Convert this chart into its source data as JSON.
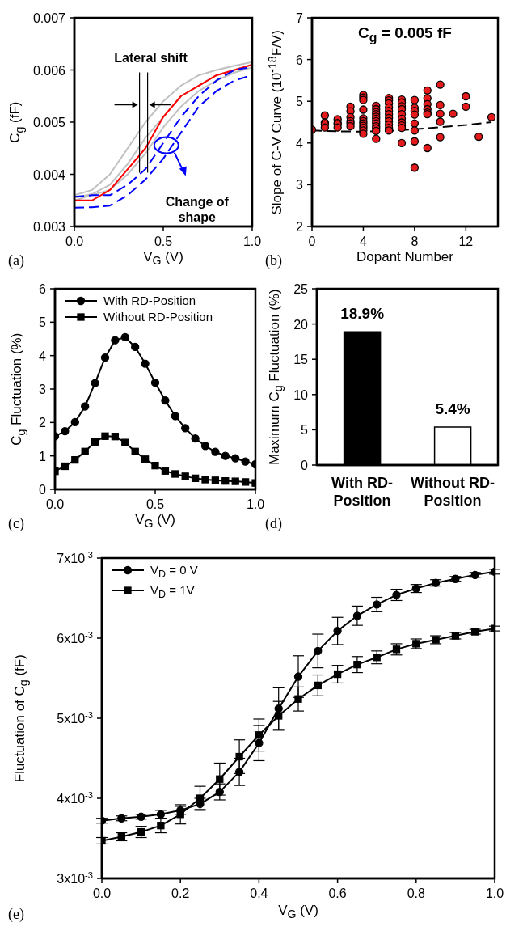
{
  "chart_data": [
    {
      "type": "line",
      "xlabel": "V$_{G}$ (V)",
      "ylabel": "C$_{g}$ (fF)",
      "x": [
        0,
        0.1,
        0.2,
        0.3,
        0.4,
        0.5,
        0.6,
        0.7,
        0.8,
        0.9,
        1.0
      ],
      "series": [
        {
          "color": "#c0c0c0",
          "values": [
            0.0036,
            0.0037,
            0.004,
            0.0045,
            0.005,
            0.0054,
            0.0057,
            0.0059,
            0.006,
            0.00608,
            0.00615
          ]
        },
        {
          "color": "#c0c0c0",
          "values": [
            0.00355,
            0.00362,
            0.0038,
            0.0042,
            0.0047,
            0.0051,
            0.0055,
            0.0057,
            0.0059,
            0.006,
            0.0061
          ]
        },
        {
          "color": "#c0c0c0",
          "values": [
            0.0035,
            0.0036,
            0.0037,
            0.004,
            0.0044,
            0.0049,
            0.0053,
            0.0056,
            0.0058,
            0.00595,
            0.00605
          ]
        },
        {
          "color": "#ff0000",
          "values": [
            0.0035,
            0.0035,
            0.0037,
            0.0041,
            0.0045,
            0.0051,
            0.0055,
            0.0057,
            0.0059,
            0.006,
            0.0061
          ]
        },
        {
          "color": "#0000ff",
          "line_style": "dashed",
          "values": [
            0.00357,
            0.0036,
            0.0036,
            0.0038,
            0.0041,
            0.0046,
            0.0051,
            0.0055,
            0.0058,
            0.006,
            0.00606
          ]
        },
        {
          "color": "#0000ff",
          "line_style": "dashed",
          "values": [
            0.00336,
            0.00337,
            0.0034,
            0.0036,
            0.0039,
            0.0043,
            0.0048,
            0.0053,
            0.0056,
            0.0058,
            0.0059
          ]
        }
      ],
      "xlim": [
        0,
        1
      ],
      "xticks": [
        {
          "value": 0,
          "label": "0.0"
        },
        {
          "value": 0.5,
          "label": "0.5"
        },
        {
          "value": 1,
          "label": "1.0"
        }
      ],
      "ylim": [
        0.003,
        0.007
      ],
      "yticks": [
        0.003,
        0.004,
        0.005,
        0.006,
        0.007
      ],
      "annotations": [
        "(a)",
        "Lateral shift",
        "Change of shape"
      ]
    },
    {
      "type": "scatter",
      "title": "C$_{g}$ =  0.005 fF",
      "xlabel": "Dopant Number",
      "ylabel": "Slope of C-V Curve (10$^{-18}$F/V)",
      "series": [
        {
          "color": "#e41a1c",
          "marker": "circle",
          "x": [
            0,
            1,
            1,
            1,
            1,
            2,
            2,
            2,
            2,
            3,
            3,
            3,
            3,
            3,
            3,
            4,
            4,
            4,
            4,
            4,
            4,
            4,
            4,
            4,
            4,
            4,
            5,
            5,
            5,
            5,
            5,
            5,
            5,
            5,
            5,
            5,
            5,
            5,
            6,
            6,
            6,
            6,
            6,
            6,
            6,
            6,
            6,
            6,
            6,
            7,
            7,
            7,
            7,
            7,
            7,
            7,
            7,
            7,
            7,
            8,
            8,
            8,
            8,
            8,
            8,
            8,
            8,
            9,
            9,
            9,
            9,
            9,
            9,
            9,
            10,
            10,
            10,
            10,
            10,
            11,
            12,
            12,
            13,
            14
          ],
          "values": [
            4.32,
            4.66,
            4.49,
            4.45,
            4.37,
            4.57,
            4.48,
            4.45,
            4.37,
            4.87,
            4.76,
            4.62,
            4.52,
            4.47,
            4.4,
            5.15,
            5.09,
            5.03,
            4.8,
            4.59,
            4.52,
            4.47,
            4.41,
            4.36,
            4.3,
            4.22,
            4.89,
            4.81,
            4.74,
            4.69,
            4.63,
            4.58,
            4.52,
            4.47,
            4.4,
            4.35,
            4.29,
            4.1,
            5.08,
            5.02,
            4.95,
            4.85,
            4.77,
            4.69,
            4.6,
            4.52,
            4.44,
            4.36,
            4.3,
            5.04,
            4.97,
            4.88,
            4.81,
            4.69,
            4.58,
            4.49,
            4.42,
            4.36,
            4.0,
            5.03,
            4.84,
            4.77,
            4.68,
            4.47,
            4.3,
            4.04,
            3.41,
            5.26,
            5.07,
            4.93,
            4.81,
            4.73,
            4.69,
            3.88,
            5.4,
            4.91,
            4.7,
            4.51,
            4.14,
            4.7,
            5.12,
            4.87,
            4.15,
            4.62
          ]
        },
        {
          "type": "line",
          "color": "#000000",
          "line_style": "dashed",
          "x": [
            0,
            2,
            4,
            6,
            8,
            10,
            12,
            14
          ],
          "values": [
            4.3,
            4.28,
            4.27,
            4.29,
            4.33,
            4.38,
            4.43,
            4.5
          ]
        }
      ],
      "xlim": [
        0,
        14.5
      ],
      "xticks": [
        0,
        4,
        8,
        12
      ],
      "ylim": [
        2,
        7
      ],
      "yticks": [
        2,
        3,
        4,
        5,
        6,
        7
      ],
      "annotations": [
        "(b)"
      ]
    },
    {
      "type": "line",
      "xlabel": "V$_{G}$ (V)",
      "ylabel": "C$_{g}$ Fluctuation (%)",
      "legend": "top left",
      "x": [
        0,
        0.05,
        0.1,
        0.15,
        0.2,
        0.25,
        0.3,
        0.35,
        0.4,
        0.45,
        0.5,
        0.55,
        0.6,
        0.65,
        0.7,
        0.75,
        0.8,
        0.85,
        0.9,
        0.95,
        1.0
      ],
      "series": [
        {
          "name": "With RD-Position",
          "color": "#000000",
          "marker": "circle",
          "values": [
            1.59,
            1.74,
            2.01,
            2.48,
            3.18,
            3.94,
            4.46,
            4.55,
            4.26,
            3.76,
            3.19,
            2.66,
            2.19,
            1.83,
            1.52,
            1.3,
            1.12,
            1.0,
            0.93,
            0.83,
            0.75
          ]
        },
        {
          "name": "Without RD-Position",
          "color": "#000000",
          "marker": "square",
          "values": [
            0.54,
            0.69,
            0.88,
            1.13,
            1.42,
            1.59,
            1.58,
            1.4,
            1.13,
            0.9,
            0.71,
            0.55,
            0.46,
            0.39,
            0.33,
            0.29,
            0.27,
            0.25,
            0.24,
            0.22,
            0.19
          ]
        }
      ],
      "xlim": [
        0,
        1
      ],
      "xticks": [
        {
          "value": 0,
          "label": "0.0"
        },
        {
          "value": 0.5,
          "label": "0.5"
        },
        {
          "value": 1,
          "label": "1.0"
        }
      ],
      "ylim": [
        0,
        6
      ],
      "yticks": [
        0,
        1,
        2,
        3,
        4,
        5,
        6
      ],
      "annotations": [
        "(c)"
      ]
    },
    {
      "type": "bar",
      "ylabel": "Maximum C$_{g}$ Fluctuation (%)",
      "categories": [
        "With RD-\nPosition",
        "Without RD-\nPosition"
      ],
      "values": [
        18.9,
        5.4
      ],
      "colors": [
        "#000000",
        "#ffffff"
      ],
      "value_labels": [
        "18.9%",
        "5.4%"
      ],
      "ylim": [
        0,
        25
      ],
      "yticks": [
        0,
        5,
        10,
        15,
        20,
        25
      ],
      "annotations": [
        "(d)"
      ]
    },
    {
      "type": "line",
      "xlabel": "V$_{G}$ (V)",
      "ylabel": "Fluctuation of C$_{g}$ (fF)",
      "legend": "top left",
      "x": [
        0,
        0.05,
        0.1,
        0.15,
        0.2,
        0.25,
        0.3,
        0.35,
        0.4,
        0.45,
        0.5,
        0.55,
        0.6,
        0.65,
        0.7,
        0.75,
        0.8,
        0.85,
        0.9,
        0.95,
        1.0
      ],
      "series": [
        {
          "name": "V$_{D}$ = 0 V",
          "color": "#000000",
          "marker": "circle",
          "values": [
            0.00372,
            0.00375,
            0.00377,
            0.0038,
            0.00385,
            0.00393,
            0.00408,
            0.00433,
            0.00469,
            0.00512,
            0.00552,
            0.00584,
            0.00609,
            0.00628,
            0.00642,
            0.00654,
            0.00662,
            0.00669,
            0.00674,
            0.00679,
            0.00683
          ],
          "errors": [
            3e-05,
            3e-05,
            3e-05,
            5e-05,
            5e-05,
            7e-05,
            0.0001,
            0.00017,
            0.00022,
            0.00026,
            0.00026,
            0.00021,
            0.00017,
            0.00012,
            9e-05,
            7e-05,
            5e-05,
            4e-05,
            3e-05,
            3e-05,
            3e-05
          ]
        },
        {
          "name": "V$_{D}$ = 1V",
          "color": "#000000",
          "marker": "square",
          "values": [
            0.00347,
            0.00352,
            0.00358,
            0.00366,
            0.0038,
            0.004,
            0.00424,
            0.00452,
            0.00479,
            0.00503,
            0.00524,
            0.00541,
            0.00555,
            0.00567,
            0.00576,
            0.00586,
            0.00593,
            0.00598,
            0.00603,
            0.00608,
            0.00612
          ],
          "errors": [
            4e-05,
            5e-05,
            7e-05,
            9e-05,
            0.00012,
            0.00015,
            0.0002,
            0.00021,
            0.0002,
            0.00018,
            0.00015,
            0.00013,
            0.00011,
            0.0001,
            8e-05,
            7e-05,
            6e-05,
            5e-05,
            4e-05,
            3e-05,
            3e-05
          ]
        }
      ],
      "xlim": [
        0,
        1
      ],
      "xticks": [
        {
          "value": 0,
          "label": "0.0"
        },
        {
          "value": 0.2,
          "label": "0.2"
        },
        {
          "value": 0.4,
          "label": "0.4"
        },
        {
          "value": 0.6,
          "label": "0.6"
        },
        {
          "value": 0.8,
          "label": "0.8"
        },
        {
          "value": 1,
          "label": "1.0"
        }
      ],
      "ylim": [
        0.003,
        0.007
      ],
      "yticks": [
        {
          "value": 0.003,
          "label": "3x10$^{-3}$"
        },
        {
          "value": 0.004,
          "label": "4x10$^{-3}$"
        },
        {
          "value": 0.005,
          "label": "5x10$^{-3}$"
        },
        {
          "value": 0.006,
          "label": "6x10$^{-3}$"
        },
        {
          "value": 0.007,
          "label": "7x10$^{-3}$"
        }
      ],
      "annotations": [
        "(e)"
      ]
    }
  ]
}
